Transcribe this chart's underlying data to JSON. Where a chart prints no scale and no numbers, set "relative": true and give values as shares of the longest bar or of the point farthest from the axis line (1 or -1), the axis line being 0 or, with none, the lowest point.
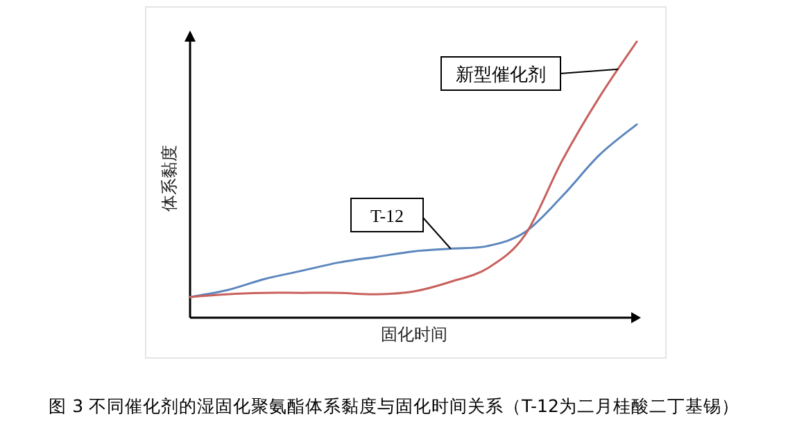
{
  "chart_data": {
    "type": "line",
    "relative": true,
    "xlabel": "固化时间",
    "ylabel": "体系黏度",
    "categories": [
      null,
      null,
      null,
      null,
      null,
      null,
      null,
      null,
      null,
      null,
      null,
      null,
      null
    ],
    "series": [
      {
        "name": "T-12",
        "color": "#5b86bd",
        "values": [
          0.075,
          0.1,
          0.14,
          0.17,
          0.2,
          0.22,
          0.24,
          0.25,
          0.26,
          0.31,
          0.44,
          0.59,
          0.7
        ]
      },
      {
        "name": "新型催化剂",
        "color": "#c8605c",
        "values": [
          0.075,
          0.085,
          0.09,
          0.09,
          0.09,
          0.085,
          0.095,
          0.13,
          0.18,
          0.3,
          0.57,
          0.8,
          1.0
        ]
      }
    ],
    "annotations": [
      "图 3  不同催化剂的湿固化聚氨酯体系黏度与固化时间关系（T-12为二月桂酸二丁基锡）"
    ],
    "marker": "none",
    "line_style": "solid"
  }
}
